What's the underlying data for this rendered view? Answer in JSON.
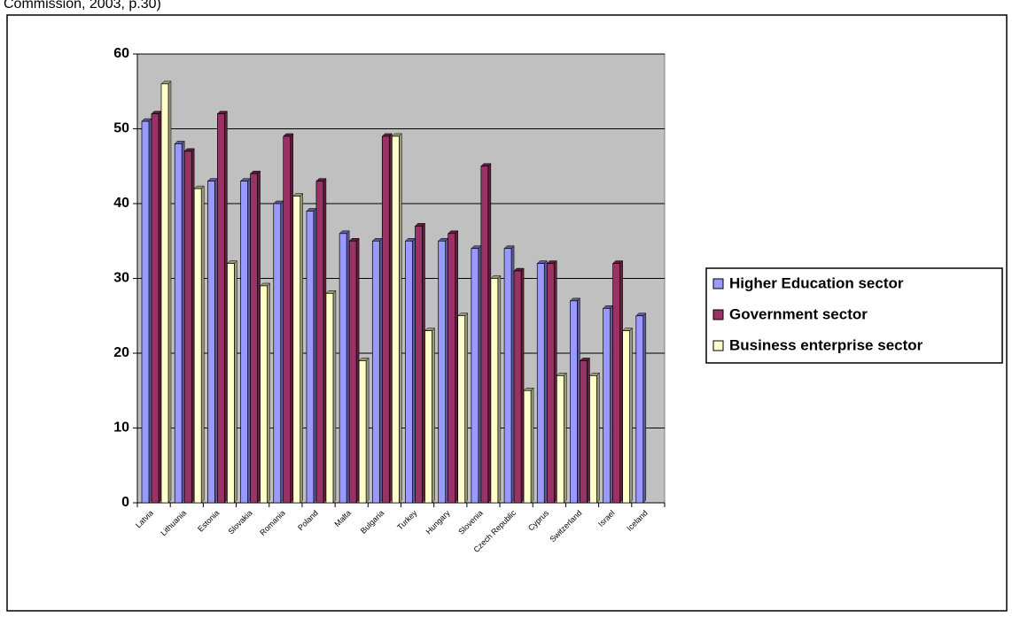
{
  "caption": "Commission, 2003, p.30)",
  "chart_data": {
    "type": "bar",
    "categories": [
      "Latvia",
      "Lithuania",
      "Estonia",
      "Slovakia",
      "Romania",
      "Poland",
      "Malta",
      "Bulgaria",
      "Turkey",
      "Hungary",
      "Slovenia",
      "Czech Republic",
      "Cyprus",
      "Switzerland",
      "Israel",
      "Iceland"
    ],
    "series": [
      {
        "name": "Higher Education sector",
        "color": "#9999ff",
        "values": [
          51,
          48,
          43,
          43,
          40,
          39,
          36,
          35,
          35,
          35,
          34,
          34,
          32,
          27,
          26,
          25
        ]
      },
      {
        "name": "Government sector",
        "color": "#993366",
        "values": [
          52,
          47,
          52,
          44,
          49,
          43,
          35,
          49,
          37,
          36,
          45,
          31,
          32,
          19,
          32,
          null
        ]
      },
      {
        "name": "Business enterprise sector",
        "color": "#ffffcc",
        "values": [
          56,
          42,
          32,
          29,
          41,
          28,
          19,
          49,
          23,
          25,
          30,
          15,
          17,
          17,
          23,
          null
        ]
      }
    ],
    "ylim": [
      0,
      60
    ],
    "yticks": [
      0,
      10,
      20,
      30,
      40,
      50,
      60
    ],
    "grid": true,
    "legend": "right"
  }
}
